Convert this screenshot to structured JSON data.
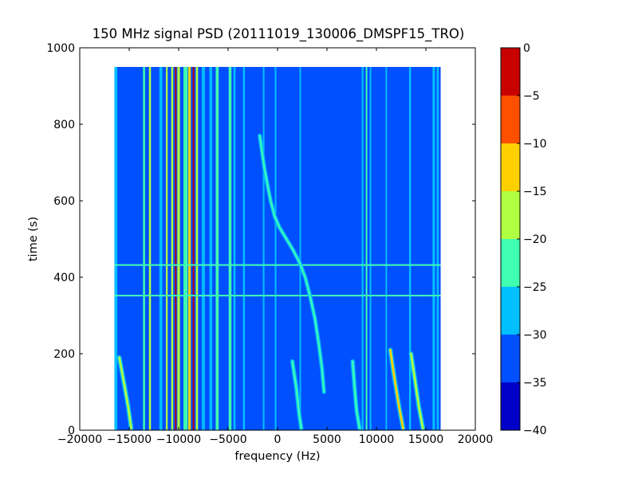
{
  "chart_data": {
    "type": "heatmap",
    "title": "150 MHz signal PSD (20111019_130006_DMSPF15_TRO)",
    "xlabel": "frequency (Hz)",
    "ylabel": "time (s)",
    "xlim": [
      -20000,
      20000
    ],
    "ylim": [
      0,
      1000
    ],
    "xticks": [
      -20000,
      -15000,
      -10000,
      -5000,
      0,
      5000,
      10000,
      15000,
      20000
    ],
    "xtick_labels": [
      "−20000",
      "−15000",
      "−10000",
      "−5000",
      "0",
      "5000",
      "10000",
      "15000",
      "20000"
    ],
    "yticks": [
      0,
      200,
      400,
      600,
      800,
      1000
    ],
    "ytick_labels": [
      "0",
      "200",
      "400",
      "600",
      "800",
      "1000"
    ],
    "data_extent": {
      "freq": [
        -16500,
        16500
      ],
      "time": [
        0,
        950
      ]
    },
    "colorbar": {
      "range": [
        -40,
        0
      ],
      "ticks": [
        0,
        -5,
        -10,
        -15,
        -20,
        -25,
        -30,
        -35,
        -40
      ],
      "tick_labels": [
        "0",
        "−5",
        "−10",
        "−15",
        "−20",
        "−25",
        "−30",
        "−35",
        "−40"
      ],
      "levels": [
        {
          "from": -40,
          "to": -35,
          "color": "#0000c8"
        },
        {
          "from": -35,
          "to": -30,
          "color": "#0050ff"
        },
        {
          "from": -30,
          "to": -25,
          "color": "#00bfff"
        },
        {
          "from": -25,
          "to": -20,
          "color": "#40ffb0"
        },
        {
          "from": -20,
          "to": -15,
          "color": "#b0ff40"
        },
        {
          "from": -15,
          "to": -10,
          "color": "#ffd000"
        },
        {
          "from": -10,
          "to": -5,
          "color": "#ff5000"
        },
        {
          "from": -5,
          "to": 0,
          "color": "#c80000"
        }
      ]
    },
    "background_level": -33,
    "vertical_lines": [
      {
        "freq": -16350,
        "level": -27,
        "width": 300
      },
      {
        "freq": -14000,
        "level": -31,
        "width": 350
      },
      {
        "freq": -13500,
        "level": -25,
        "width": 200
      },
      {
        "freq": -12900,
        "level": -16,
        "width": 200
      },
      {
        "freq": -11800,
        "level": -27,
        "width": 300
      },
      {
        "freq": -11200,
        "level": -16,
        "width": 180
      },
      {
        "freq": -10650,
        "level": -18,
        "width": 200
      },
      {
        "freq": -10300,
        "level": -3,
        "width": 140
      },
      {
        "freq": -10000,
        "level": -20,
        "width": 260
      },
      {
        "freq": -9300,
        "level": -25,
        "width": 420
      },
      {
        "freq": -8900,
        "level": -13,
        "width": 250
      },
      {
        "freq": -8500,
        "level": -4,
        "width": 160
      },
      {
        "freq": -8150,
        "level": -16,
        "width": 220
      },
      {
        "freq": -7500,
        "level": -27,
        "width": 300
      },
      {
        "freq": -6750,
        "level": -27,
        "width": 280
      },
      {
        "freq": -6100,
        "level": -25,
        "width": 300
      },
      {
        "freq": -5300,
        "level": -31,
        "width": 350
      },
      {
        "freq": -4800,
        "level": -24,
        "width": 280
      },
      {
        "freq": -4350,
        "level": -29,
        "width": 200
      },
      {
        "freq": -3400,
        "level": -29,
        "width": 200
      },
      {
        "freq": -1400,
        "level": -29,
        "width": 160
      },
      {
        "freq": -200,
        "level": -29,
        "width": 160
      },
      {
        "freq": 2300,
        "level": -29,
        "width": 150
      },
      {
        "freq": 8600,
        "level": -27,
        "width": 180
      },
      {
        "freq": 9000,
        "level": -24,
        "width": 160
      },
      {
        "freq": 9400,
        "level": -29,
        "width": 160
      },
      {
        "freq": 11000,
        "level": -29,
        "width": 150
      },
      {
        "freq": 13400,
        "level": -29,
        "width": 200
      },
      {
        "freq": 15800,
        "level": -27,
        "width": 250
      },
      {
        "freq": 16200,
        "level": -29,
        "width": 200
      }
    ],
    "horizontal_lines": [
      {
        "time": 432,
        "level": -24
      },
      {
        "time": 352,
        "level": -24
      }
    ],
    "drift_traces": [
      {
        "level": -22,
        "width": 140,
        "points": [
          [
            -1800,
            770
          ],
          [
            -1300,
            680
          ],
          [
            -700,
            600
          ],
          [
            -300,
            560
          ],
          [
            200,
            530
          ],
          [
            900,
            500
          ],
          [
            1600,
            470
          ],
          [
            2200,
            440
          ],
          [
            2800,
            400
          ],
          [
            3300,
            350
          ],
          [
            3800,
            290
          ],
          [
            4200,
            220
          ],
          [
            4500,
            160
          ],
          [
            4700,
            100
          ]
        ]
      },
      {
        "level": -18,
        "width": 220,
        "points": [
          [
            -16000,
            190
          ],
          [
            -15500,
            120
          ],
          [
            -15100,
            60
          ],
          [
            -14800,
            5
          ]
        ]
      },
      {
        "level": -24,
        "width": 180,
        "points": [
          [
            1500,
            180
          ],
          [
            1900,
            110
          ],
          [
            2200,
            40
          ],
          [
            2400,
            5
          ]
        ]
      },
      {
        "level": -24,
        "width": 180,
        "points": [
          [
            7600,
            180
          ],
          [
            7800,
            110
          ],
          [
            8000,
            50
          ],
          [
            8300,
            5
          ]
        ]
      },
      {
        "level": -12,
        "width": 220,
        "points": [
          [
            11400,
            210
          ],
          [
            11800,
            140
          ],
          [
            12300,
            60
          ],
          [
            12700,
            5
          ]
        ]
      },
      {
        "level": -17,
        "width": 220,
        "points": [
          [
            13500,
            200
          ],
          [
            13900,
            130
          ],
          [
            14300,
            60
          ],
          [
            14700,
            5
          ]
        ]
      }
    ]
  }
}
